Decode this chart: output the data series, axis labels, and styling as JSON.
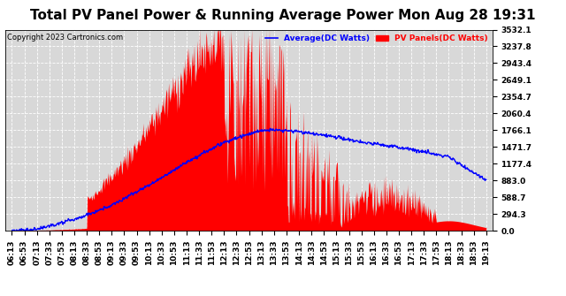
{
  "title": "Total PV Panel Power & Running Average Power Mon Aug 28 19:31",
  "copyright": "Copyright 2023 Cartronics.com",
  "legend_avg": "Average(DC Watts)",
  "legend_pv": "PV Panels(DC Watts)",
  "ylabel_right_ticks": [
    0.0,
    294.3,
    588.7,
    883.0,
    1177.4,
    1471.7,
    1766.1,
    2060.4,
    2354.7,
    2649.1,
    2943.4,
    3237.8,
    3532.1
  ],
  "ymax": 3532.1,
  "ymin": 0.0,
  "background_color": "#ffffff",
  "plot_bg_color": "#d8d8d8",
  "grid_color": "#ffffff",
  "pv_fill_color": "#ff0000",
  "avg_line_color": "#0000ff",
  "title_fontsize": 11,
  "tick_fontsize": 6.5,
  "x_labels": [
    "06:13",
    "06:53",
    "07:13",
    "07:33",
    "07:53",
    "08:13",
    "08:33",
    "08:53",
    "09:13",
    "09:33",
    "09:53",
    "10:13",
    "10:33",
    "10:53",
    "11:13",
    "11:33",
    "11:53",
    "12:13",
    "12:33",
    "12:53",
    "13:13",
    "13:33",
    "13:53",
    "14:13",
    "14:33",
    "14:53",
    "15:13",
    "15:33",
    "15:53",
    "16:13",
    "16:33",
    "16:53",
    "17:13",
    "17:33",
    "17:53",
    "18:13",
    "18:33",
    "18:53",
    "19:13"
  ],
  "n_xlabels": 39
}
